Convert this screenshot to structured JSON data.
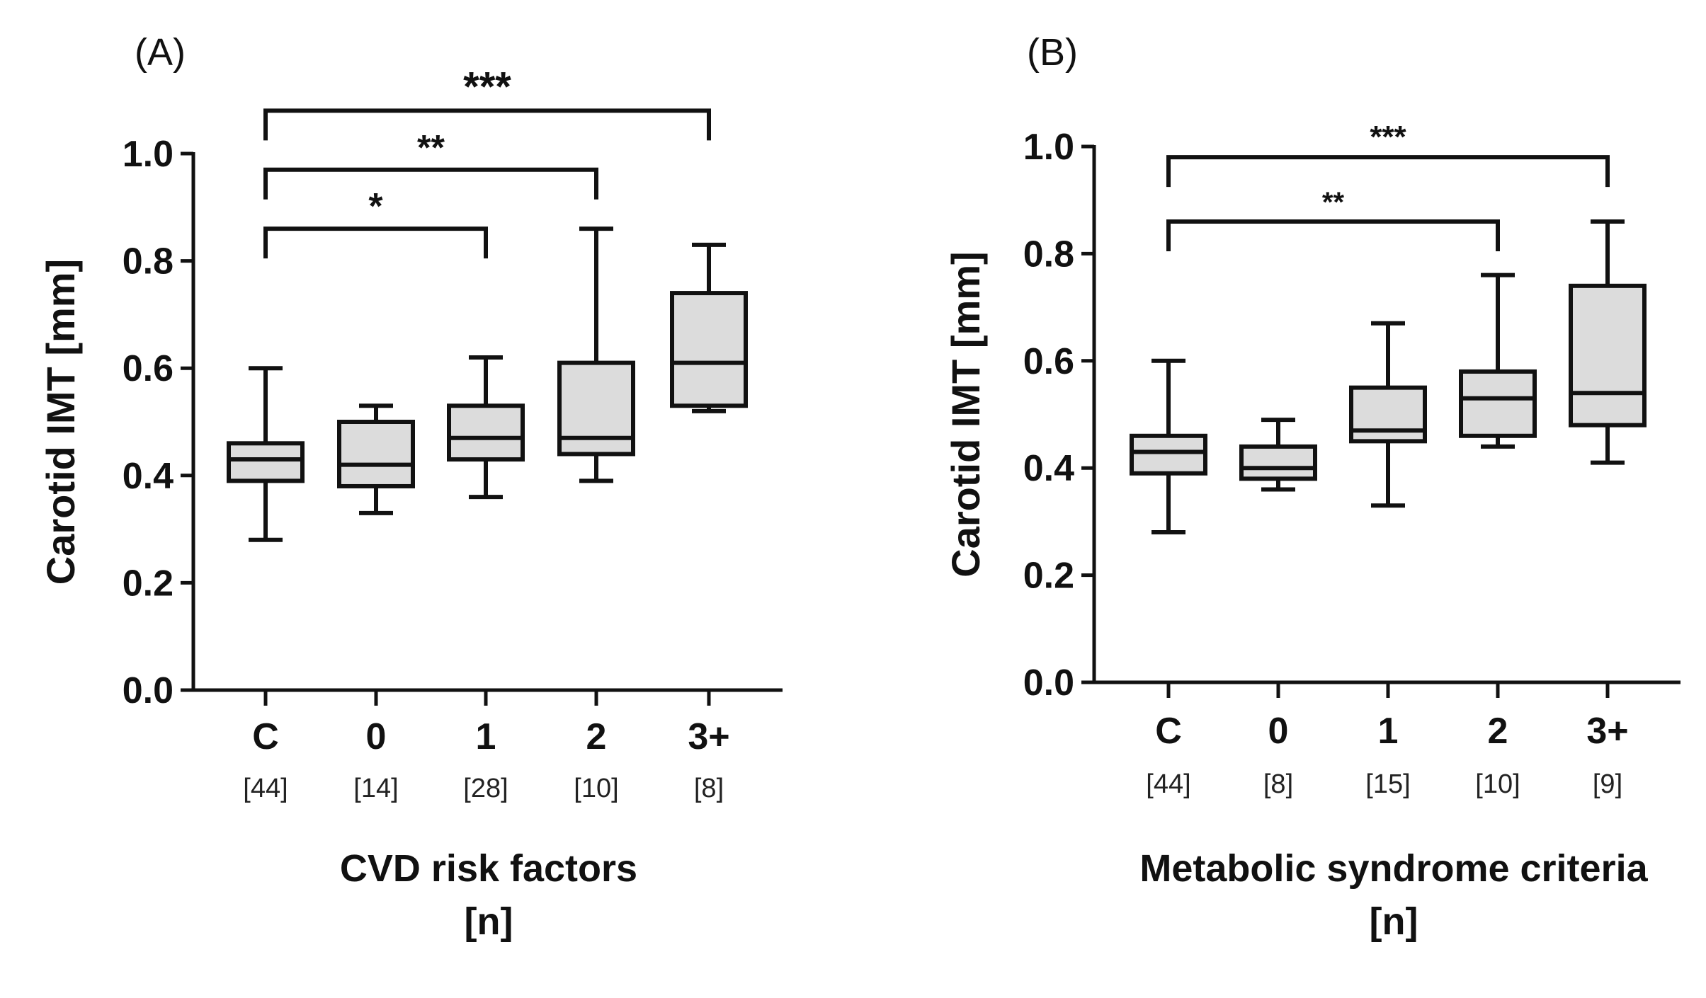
{
  "chart_data": [
    {
      "panel": "(A)",
      "type": "box",
      "ylabel": "Carotid IMT [mm]",
      "xlabel_line1": "CVD risk factors",
      "xlabel_line2": "[n]",
      "ylim": [
        0,
        1.0
      ],
      "yticks": [
        "0.0",
        "0.2",
        "0.4",
        "0.6",
        "0.8",
        "1.0"
      ],
      "categories": [
        "C",
        "0",
        "1",
        "2",
        "3+"
      ],
      "counts": [
        "[44]",
        "[14]",
        "[28]",
        "[10]",
        "[8]"
      ],
      "boxes": [
        {
          "min": 0.28,
          "q1": 0.39,
          "median": 0.43,
          "q3": 0.46,
          "max": 0.6
        },
        {
          "min": 0.33,
          "q1": 0.38,
          "median": 0.42,
          "q3": 0.5,
          "max": 0.53
        },
        {
          "min": 0.36,
          "q1": 0.43,
          "median": 0.47,
          "q3": 0.53,
          "max": 0.62
        },
        {
          "min": 0.39,
          "q1": 0.44,
          "median": 0.47,
          "q3": 0.61,
          "max": 0.86
        },
        {
          "min": 0.52,
          "q1": 0.53,
          "median": 0.61,
          "q3": 0.74,
          "max": 0.83
        }
      ],
      "significance": [
        {
          "from": 0,
          "to": 4,
          "label": "***",
          "y": 1.08
        },
        {
          "from": 0,
          "to": 3,
          "label": "**",
          "y": 0.97
        },
        {
          "from": 0,
          "to": 2,
          "label": "*",
          "y": 0.86
        }
      ]
    },
    {
      "panel": "(B)",
      "type": "box",
      "ylabel": "Carotid IMT [mm]",
      "xlabel_line1": "Metabolic syndrome criteria",
      "xlabel_line2": "[n]",
      "ylim": [
        0,
        1.0
      ],
      "yticks": [
        "0.0",
        "0.2",
        "0.4",
        "0.6",
        "0.8",
        "1.0"
      ],
      "categories": [
        "C",
        "0",
        "1",
        "2",
        "3+"
      ],
      "counts": [
        "[44]",
        "[8]",
        "[15]",
        "[10]",
        "[9]"
      ],
      "boxes": [
        {
          "min": 0.28,
          "q1": 0.39,
          "median": 0.43,
          "q3": 0.46,
          "max": 0.6
        },
        {
          "min": 0.36,
          "q1": 0.38,
          "median": 0.4,
          "q3": 0.44,
          "max": 0.49
        },
        {
          "min": 0.33,
          "q1": 0.45,
          "median": 0.47,
          "q3": 0.55,
          "max": 0.67
        },
        {
          "min": 0.44,
          "q1": 0.46,
          "median": 0.53,
          "q3": 0.58,
          "max": 0.76
        },
        {
          "min": 0.41,
          "q1": 0.48,
          "median": 0.54,
          "q3": 0.74,
          "max": 0.86
        }
      ],
      "significance": [
        {
          "from": 0,
          "to": 4,
          "label": "***",
          "y": 0.98
        },
        {
          "from": 0,
          "to": 3,
          "label": "**",
          "y": 0.86
        }
      ]
    }
  ]
}
